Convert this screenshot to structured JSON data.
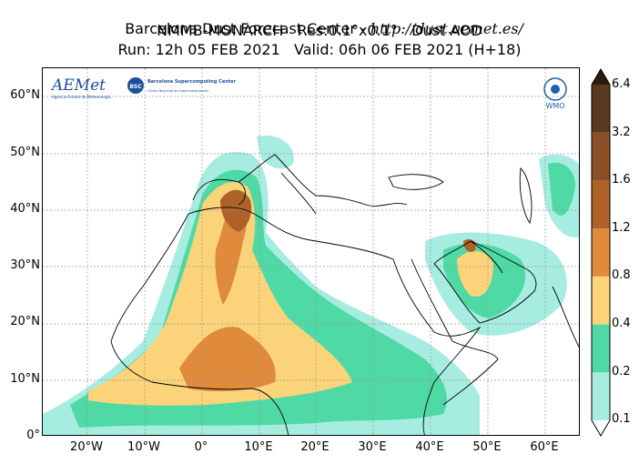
{
  "title": {
    "line1_prefix": "Barcelona Dust Forecast Center - ",
    "line1_url": "http://dust.aemet.es/",
    "line2": "NMMB-MONARCH   Res:0.1°x0.1°   Dust AOD",
    "line3": "Run: 12h 05 FEB 2021   Valid: 06h 06 FEB 2021 (H+18)"
  },
  "map": {
    "type": "dust-aod-forecast",
    "extent": {
      "lon": [
        -27,
        67
      ],
      "lat": [
        0,
        65
      ]
    },
    "lat_ticks": [
      "0°",
      "10°N",
      "20°N",
      "30°N",
      "40°N",
      "50°N",
      "60°N"
    ],
    "lon_ticks": [
      "20°W",
      "10°W",
      "0°",
      "10°E",
      "20°E",
      "30°E",
      "40°E",
      "50°E",
      "60°E"
    ],
    "grid": true
  },
  "colorbar": {
    "labels": [
      "0.1",
      "0.2",
      "0.4",
      "0.8",
      "1.2",
      "1.6",
      "3.2",
      "6.4"
    ],
    "colors": [
      "#ffffff",
      "#a6ece0",
      "#4fd9a4",
      "#fbd37a",
      "#e08a3b",
      "#ae6129",
      "#8a4f26",
      "#5a3a1f",
      "#2b1a0e"
    ]
  },
  "logos": {
    "aemet": "AEMet",
    "aemet_sub": "Agencia Estatal de Meteorología",
    "bsc": "BSC",
    "bsc_text": "Barcelona Supercomputing Center",
    "bsc_sub": "Centro Nacional de Supercomputación",
    "wmo": "WMO"
  }
}
